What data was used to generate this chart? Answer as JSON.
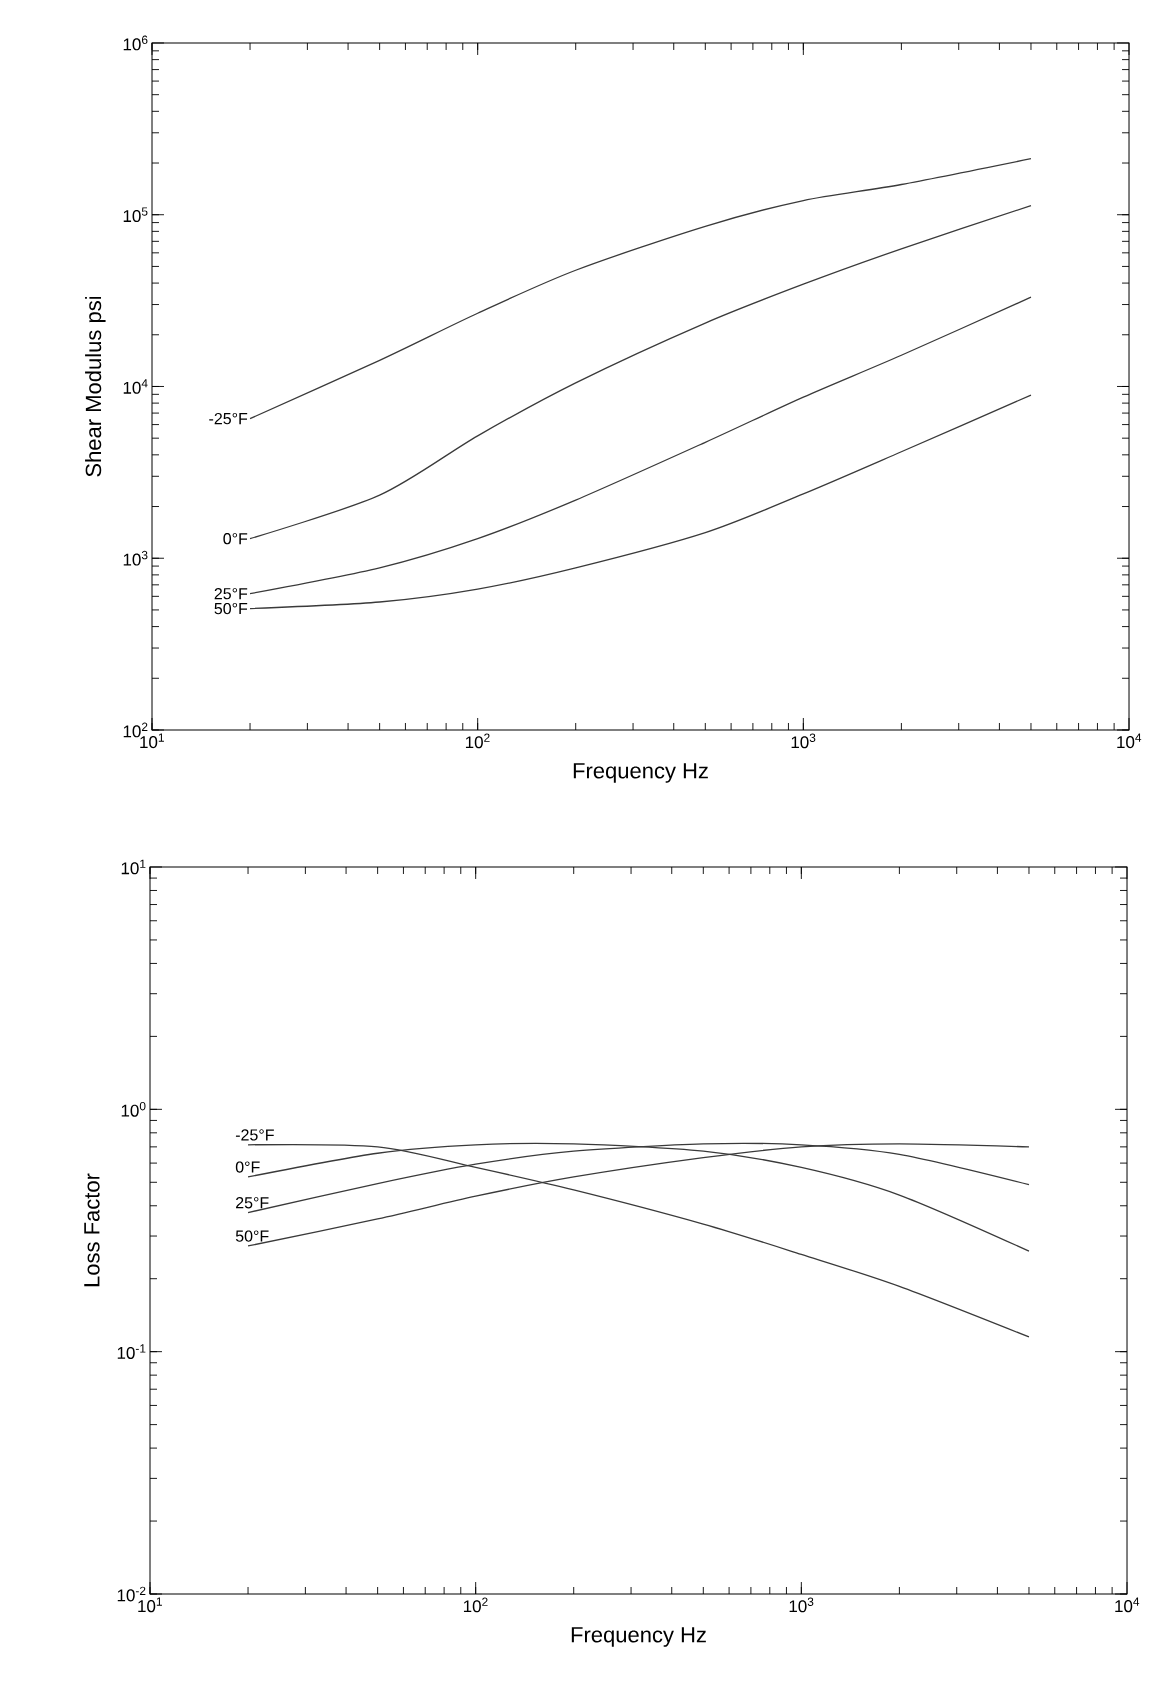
{
  "chart_data": [
    {
      "type": "line",
      "xlabel": "Frequency Hz",
      "ylabel": "Shear Modulus psi",
      "log": "xy",
      "grid": false,
      "legend": false,
      "marker": "none",
      "line_style": "solid",
      "xlim": [
        10,
        10000
      ],
      "ylim": [
        100,
        1000000
      ],
      "xticks": [
        {
          "value": 10,
          "label": "10$^{1}$"
        },
        {
          "value": 100,
          "label": "10$^{2}$"
        },
        {
          "value": 1000,
          "label": "10$^{3}$"
        },
        {
          "value": 10000,
          "label": "10$^{4}$"
        }
      ],
      "yticks": [
        {
          "value": 100,
          "label": "10$^{2}$"
        },
        {
          "value": 1000,
          "label": "10$^{3}$"
        },
        {
          "value": 10000,
          "label": "10$^{4}$"
        },
        {
          "value": 100000,
          "label": "10$^{5}$"
        },
        {
          "value": 1000000,
          "label": "10$^{6}$"
        }
      ],
      "x": [
        20,
        50,
        100,
        200,
        500,
        1000,
        2000,
        5000
      ],
      "series": [
        {
          "name": "-25°F",
          "color": "#3a3a3a",
          "values": [
            6500,
            14200,
            26700,
            47500,
            85600,
            121000,
            150000,
            212000
          ]
        },
        {
          "name": "0°F",
          "color": "#3a3a3a",
          "values": [
            1300,
            2330,
            5160,
            10500,
            23400,
            39400,
            63300,
            113000
          ]
        },
        {
          "name": "25°F",
          "color": "#3a3a3a",
          "values": [
            622,
            879,
            1300,
            2180,
            4730,
            8670,
            15200,
            33100
          ]
        },
        {
          "name": "50°F",
          "color": "#3a3a3a",
          "values": [
            509,
            556,
            661,
            879,
            1410,
            2370,
            4170,
            8910
          ]
        }
      ]
    },
    {
      "type": "line",
      "xlabel": "Frequency Hz",
      "ylabel": "Loss Factor",
      "log": "xy",
      "grid": false,
      "legend": false,
      "marker": "none",
      "line_style": "solid",
      "xlim": [
        10,
        10000
      ],
      "ylim": [
        0.01,
        10
      ],
      "xticks": [
        {
          "value": 10,
          "label": "10$^{1}$"
        },
        {
          "value": 100,
          "label": "10$^{2}$"
        },
        {
          "value": 1000,
          "label": "10$^{3}$"
        },
        {
          "value": 10000,
          "label": "10$^{4}$"
        }
      ],
      "yticks": [
        {
          "value": 0.01,
          "label": "10$^{-2}$"
        },
        {
          "value": 0.1,
          "label": "10$^{-1}$"
        },
        {
          "value": 1,
          "label": "10$^{0}$"
        },
        {
          "value": 10,
          "label": "10$^{1}$"
        }
      ],
      "x": [
        20,
        50,
        100,
        200,
        500,
        1000,
        2000,
        5000
      ],
      "series": [
        {
          "name": "-25°F",
          "color": "#3a3a3a",
          "values": [
            0.714,
            0.7,
            0.576,
            0.465,
            0.336,
            0.252,
            0.186,
            0.115
          ]
        },
        {
          "name": "0°F",
          "color": "#3a3a3a",
          "values": [
            0.526,
            0.659,
            0.714,
            0.72,
            0.672,
            0.576,
            0.443,
            0.26
          ]
        },
        {
          "name": "25°F",
          "color": "#3a3a3a",
          "values": [
            0.375,
            0.494,
            0.594,
            0.672,
            0.72,
            0.714,
            0.652,
            0.489
          ]
        },
        {
          "name": "50°F",
          "color": "#3a3a3a",
          "values": [
            0.273,
            0.353,
            0.438,
            0.526,
            0.632,
            0.7,
            0.72,
            0.7
          ]
        }
      ]
    }
  ]
}
